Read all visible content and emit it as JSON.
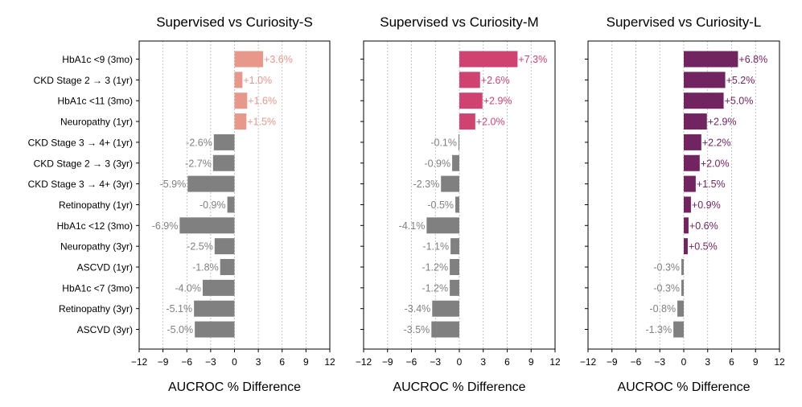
{
  "chart_data": [
    {
      "type": "bar",
      "orientation": "horizontal",
      "title": "Supervised vs Curiosity-S",
      "xlabel": "AUCROC % Difference",
      "ylabel": "",
      "xlim": [
        -12,
        12
      ],
      "xticks": [
        -12,
        -9,
        -6,
        -3,
        0,
        3,
        6,
        9,
        12
      ],
      "xtick_labels": [
        "−12",
        "−9",
        "−6",
        "−3",
        "0",
        "3",
        "6",
        "9",
        "12"
      ],
      "grid": "vertical dotted",
      "positive_color": "#E8988A",
      "negative_color": "#808080",
      "categories": [
        "HbA1c <9 (3mo)",
        "CKD Stage 2 → 3 (1yr)",
        "HbA1c <11 (3mo)",
        "Neuropathy (1yr)",
        "CKD Stage 3 → 4+ (1yr)",
        "CKD Stage 2 → 3 (3yr)",
        "CKD Stage 3 → 4+ (3yr)",
        "Retinopathy (1yr)",
        "HbA1c <12 (3mo)",
        "Neuropathy (3yr)",
        "ASCVD (1yr)",
        "HbA1c <7 (3mo)",
        "Retinopathy (3yr)",
        "ASCVD (3yr)"
      ],
      "values": [
        3.6,
        1.0,
        1.6,
        1.5,
        -2.6,
        -2.7,
        -5.9,
        -0.9,
        -6.9,
        -2.5,
        -1.8,
        -4.0,
        -5.1,
        -5.0
      ],
      "value_labels": [
        "+3.6%",
        "+1.0%",
        "+1.6%",
        "+1.5%",
        "-2.6%",
        "-2.7%",
        "-5.9%",
        "-0.9%",
        "-6.9%",
        "-2.5%",
        "-1.8%",
        "-4.0%",
        "-5.1%",
        "-5.0%"
      ]
    },
    {
      "type": "bar",
      "orientation": "horizontal",
      "title": "Supervised vs Curiosity-M",
      "xlabel": "AUCROC % Difference",
      "ylabel": "",
      "xlim": [
        -12,
        12
      ],
      "xticks": [
        -12,
        -9,
        -6,
        -3,
        0,
        3,
        6,
        9,
        12
      ],
      "xtick_labels": [
        "−12",
        "−9",
        "−6",
        "−3",
        "0",
        "3",
        "6",
        "9",
        "12"
      ],
      "grid": "vertical dotted",
      "positive_color": "#D04371",
      "negative_color": "#808080",
      "categories": [
        "HbA1c <9 (3mo)",
        "CKD Stage 2 → 3 (1yr)",
        "HbA1c <11 (3mo)",
        "Neuropathy (1yr)",
        "CKD Stage 3 → 4+ (1yr)",
        "CKD Stage 2 → 3 (3yr)",
        "CKD Stage 3 → 4+ (3yr)",
        "Retinopathy (1yr)",
        "HbA1c <12 (3mo)",
        "Neuropathy (3yr)",
        "ASCVD (1yr)",
        "HbA1c <7 (3mo)",
        "Retinopathy (3yr)",
        "ASCVD (3yr)"
      ],
      "values": [
        7.3,
        2.6,
        2.9,
        2.0,
        -0.1,
        -0.9,
        -2.3,
        -0.5,
        -4.1,
        -1.1,
        -1.2,
        -1.2,
        -3.4,
        -3.5
      ],
      "value_labels": [
        "+7.3%",
        "+2.6%",
        "+2.9%",
        "+2.0%",
        "-0.1%",
        "-0.9%",
        "-2.3%",
        "-0.5%",
        "-4.1%",
        "-1.1%",
        "-1.2%",
        "-1.2%",
        "-3.4%",
        "-3.5%"
      ]
    },
    {
      "type": "bar",
      "orientation": "horizontal",
      "title": "Supervised vs Curiosity-L",
      "xlabel": "AUCROC % Difference",
      "ylabel": "",
      "xlim": [
        -12,
        12
      ],
      "xticks": [
        -12,
        -9,
        -6,
        -3,
        0,
        3,
        6,
        9,
        12
      ],
      "xtick_labels": [
        "−12",
        "−9",
        "−6",
        "−3",
        "0",
        "3",
        "6",
        "9",
        "12"
      ],
      "grid": "vertical dotted",
      "positive_color": "#722460",
      "negative_color": "#808080",
      "categories": [
        "HbA1c <9 (3mo)",
        "CKD Stage 2 → 3 (1yr)",
        "HbA1c <11 (3mo)",
        "Neuropathy (1yr)",
        "CKD Stage 3 → 4+ (1yr)",
        "CKD Stage 2 → 3 (3yr)",
        "CKD Stage 3 → 4+ (3yr)",
        "Retinopathy (1yr)",
        "HbA1c <12 (3mo)",
        "Neuropathy (3yr)",
        "ASCVD (1yr)",
        "HbA1c <7 (3mo)",
        "Retinopathy (3yr)",
        "ASCVD (3yr)"
      ],
      "values": [
        6.8,
        5.2,
        5.0,
        2.9,
        2.2,
        2.0,
        1.5,
        0.9,
        0.6,
        0.5,
        -0.3,
        -0.3,
        -0.8,
        -1.3
      ],
      "value_labels": [
        "+6.8%",
        "+5.2%",
        "+5.0%",
        "+2.9%",
        "+2.2%",
        "+2.0%",
        "+1.5%",
        "+0.9%",
        "+0.6%",
        "+0.5%",
        "-0.3%",
        "-0.3%",
        "-0.8%",
        "-1.3%"
      ]
    }
  ]
}
